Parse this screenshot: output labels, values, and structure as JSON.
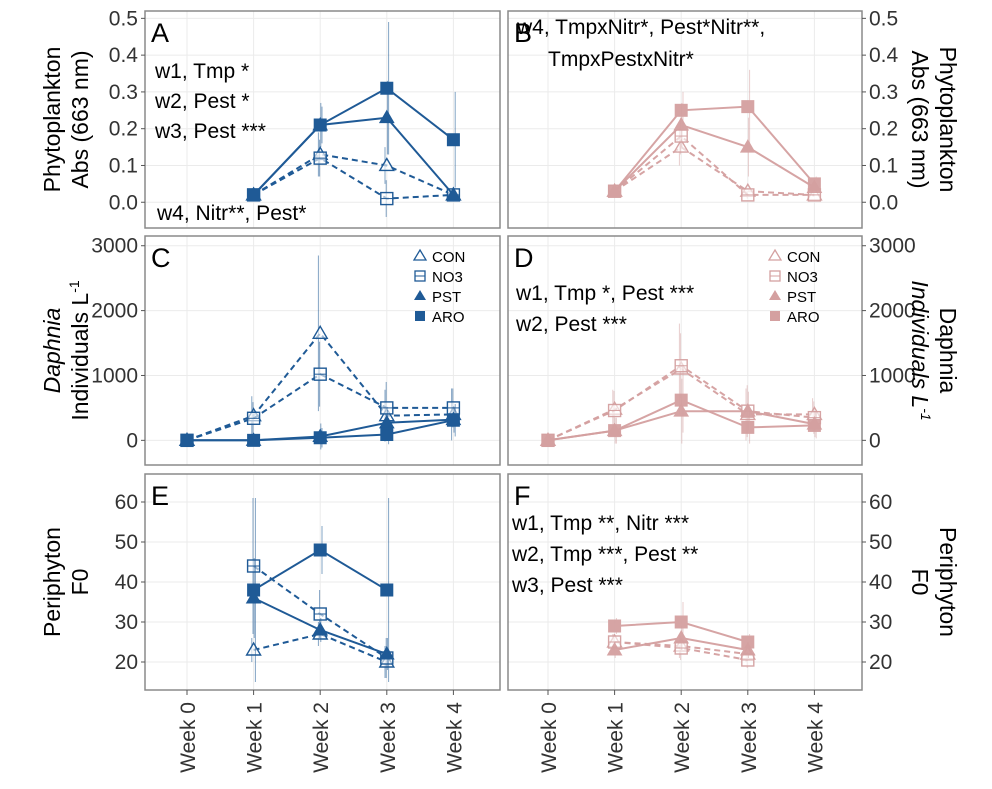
{
  "colors": {
    "blue": "#1F5A96",
    "pink": "#D4A0A0",
    "frame": "#8a8a8a",
    "grid": "#ebebeb"
  },
  "weeks": [
    "Week 0",
    "Week 1",
    "Week 2",
    "Week 3",
    "Week 4"
  ],
  "legend_entries": [
    "CON",
    "NO3",
    "PST",
    "ARO"
  ],
  "chart_data": [
    {
      "panel": "A",
      "type": "line",
      "row": 0,
      "side": "left",
      "color": "blue",
      "ylabel": [
        "Phytoplankton",
        "Abs (663 nm)"
      ],
      "ylim": [
        -0.07,
        0.52
      ],
      "yticks": [
        0.0,
        0.1,
        0.2,
        0.3,
        0.4,
        0.5
      ],
      "ytick_labels": [
        "0.0",
        "0.1",
        "0.2",
        "0.3",
        "0.4",
        "0.5"
      ],
      "annotations": [
        "w1, Tmp *",
        "w2, Pest *",
        "w3, Pest ***",
        "w4, Nitr**, Pest*"
      ],
      "series": [
        {
          "name": "CON",
          "values": [
            null,
            0.02,
            0.13,
            0.1,
            0.02
          ],
          "errors": [
            null,
            0.005,
            0.06,
            0.05,
            0.005
          ]
        },
        {
          "name": "NO3",
          "values": [
            null,
            0.02,
            0.12,
            0.01,
            0.02
          ],
          "errors": [
            null,
            0.005,
            0.05,
            0.05,
            0.005
          ]
        },
        {
          "name": "PST",
          "values": [
            null,
            0.02,
            0.21,
            0.23,
            0.02
          ],
          "errors": [
            null,
            0.005,
            0.06,
            0.1,
            0.005
          ]
        },
        {
          "name": "ARO",
          "values": [
            null,
            0.02,
            0.21,
            0.31,
            0.17
          ],
          "errors": [
            null,
            0.005,
            0.05,
            0.18,
            0.13
          ]
        }
      ]
    },
    {
      "panel": "B",
      "type": "line",
      "row": 0,
      "side": "right",
      "color": "pink",
      "ylabel": [
        "Abs (663 nm)",
        "Phytoplankton"
      ],
      "ylim": [
        -0.07,
        0.52
      ],
      "yticks": [
        0.0,
        0.1,
        0.2,
        0.3,
        0.4,
        0.5
      ],
      "ytick_labels": [
        "0.0",
        "0.1",
        "0.2",
        "0.3",
        "0.4",
        "0.5"
      ],
      "annotations": [
        "w4, TmpxNitr*, Pest*Nitr**,",
        "TmpxPestxNitr*"
      ],
      "series": [
        {
          "name": "CON",
          "values": [
            null,
            0.03,
            0.15,
            0.03,
            0.02
          ],
          "errors": [
            null,
            0.005,
            0.05,
            0.01,
            0.005
          ]
        },
        {
          "name": "NO3",
          "values": [
            null,
            0.03,
            0.18,
            0.02,
            0.02
          ],
          "errors": [
            null,
            0.005,
            0.05,
            0.01,
            0.005
          ]
        },
        {
          "name": "PST",
          "values": [
            null,
            0.03,
            0.21,
            0.15,
            0.04
          ],
          "errors": [
            null,
            0.005,
            0.06,
            0.08,
            0.01
          ]
        },
        {
          "name": "ARO",
          "values": [
            null,
            0.03,
            0.25,
            0.26,
            0.05
          ],
          "errors": [
            null,
            0.005,
            0.05,
            0.1,
            0.02
          ]
        }
      ]
    },
    {
      "panel": "C",
      "type": "line",
      "row": 1,
      "side": "left",
      "color": "blue",
      "ylabel": [
        "Daphnia",
        "Individuals L-1"
      ],
      "ylim": [
        -380,
        3150
      ],
      "yticks": [
        0,
        1000,
        2000,
        3000
      ],
      "ytick_labels": [
        "0",
        "1000",
        "2000",
        "3000"
      ],
      "annotations": [],
      "legend": true,
      "series": [
        {
          "name": "CON",
          "values": [
            0,
            380,
            1650,
            380,
            400
          ],
          "errors": [
            30,
            300,
            1200,
            400,
            400
          ]
        },
        {
          "name": "NO3",
          "values": [
            0,
            340,
            1020,
            500,
            500
          ],
          "errors": [
            30,
            250,
            500,
            400,
            300
          ]
        },
        {
          "name": "PST",
          "values": [
            0,
            0,
            60,
            270,
            320
          ],
          "errors": [
            20,
            50,
            200,
            200,
            200
          ]
        },
        {
          "name": "ARO",
          "values": [
            0,
            0,
            40,
            90,
            310
          ],
          "errors": [
            20,
            50,
            150,
            150,
            250
          ]
        }
      ]
    },
    {
      "panel": "D",
      "type": "line",
      "row": 1,
      "side": "right",
      "color": "pink",
      "ylabel": [
        "Individuals L-1",
        "Daphnia"
      ],
      "ylim": [
        -380,
        3150
      ],
      "yticks": [
        0,
        1000,
        2000,
        3000
      ],
      "ytick_labels": [
        "0",
        "1000",
        "2000",
        "3000"
      ],
      "annotations": [
        "w1, Tmp *, Pest ***",
        "w2, Pest ***"
      ],
      "legend": true,
      "series": [
        {
          "name": "CON",
          "values": [
            0,
            480,
            1100,
            400,
            400
          ],
          "errors": [
            30,
            300,
            700,
            400,
            250
          ]
        },
        {
          "name": "NO3",
          "values": [
            0,
            460,
            1150,
            450,
            350
          ],
          "errors": [
            30,
            300,
            500,
            400,
            250
          ]
        },
        {
          "name": "PST",
          "values": [
            0,
            150,
            450,
            450,
            250
          ],
          "errors": [
            30,
            200,
            500,
            300,
            200
          ]
        },
        {
          "name": "ARO",
          "values": [
            0,
            150,
            620,
            200,
            230
          ],
          "errors": [
            30,
            200,
            500,
            250,
            200
          ]
        }
      ]
    },
    {
      "panel": "E",
      "type": "line",
      "row": 2,
      "side": "left",
      "color": "blue",
      "ylabel": [
        "Periphyton",
        "F0"
      ],
      "ylim": [
        13,
        67
      ],
      "yticks": [
        20,
        30,
        40,
        50,
        60
      ],
      "ytick_labels": [
        "20",
        "30",
        "40",
        "50",
        "60"
      ],
      "annotations": [],
      "series": [
        {
          "name": "CON",
          "values": [
            null,
            23,
            27,
            20,
            null
          ],
          "errors": [
            null,
            3,
            3,
            4,
            null
          ]
        },
        {
          "name": "NO3",
          "values": [
            null,
            44,
            32,
            21,
            null
          ],
          "errors": [
            null,
            17,
            6,
            5,
            null
          ]
        },
        {
          "name": "PST",
          "values": [
            null,
            36,
            28,
            22,
            null
          ],
          "errors": [
            null,
            10,
            3,
            4,
            null
          ]
        },
        {
          "name": "ARO",
          "values": [
            null,
            38,
            48,
            38,
            null
          ],
          "errors": [
            null,
            23,
            6,
            23,
            null
          ]
        }
      ]
    },
    {
      "panel": "F",
      "type": "line",
      "row": 2,
      "side": "right",
      "color": "pink",
      "ylabel": [
        "F0",
        "Periphyton"
      ],
      "ylim": [
        13,
        67
      ],
      "yticks": [
        20,
        30,
        40,
        50,
        60
      ],
      "ytick_labels": [
        "20",
        "30",
        "40",
        "50",
        "60"
      ],
      "annotations": [
        "w1, Tmp **, Nitr ***",
        "w2, Tmp ***, Pest **",
        "w3, Pest ***"
      ],
      "series": [
        {
          "name": "CON",
          "values": [
            null,
            25,
            24,
            22,
            null
          ],
          "errors": [
            null,
            2,
            3,
            2,
            null
          ]
        },
        {
          "name": "NO3",
          "values": [
            null,
            25,
            23.5,
            20.5,
            null
          ],
          "errors": [
            null,
            2,
            3,
            2,
            null
          ]
        },
        {
          "name": "PST",
          "values": [
            null,
            23,
            26,
            23,
            null
          ],
          "errors": [
            null,
            2,
            3,
            2,
            null
          ]
        },
        {
          "name": "ARO",
          "values": [
            null,
            29,
            30,
            25,
            null
          ],
          "errors": [
            null,
            2,
            5,
            2,
            null
          ]
        }
      ]
    }
  ]
}
